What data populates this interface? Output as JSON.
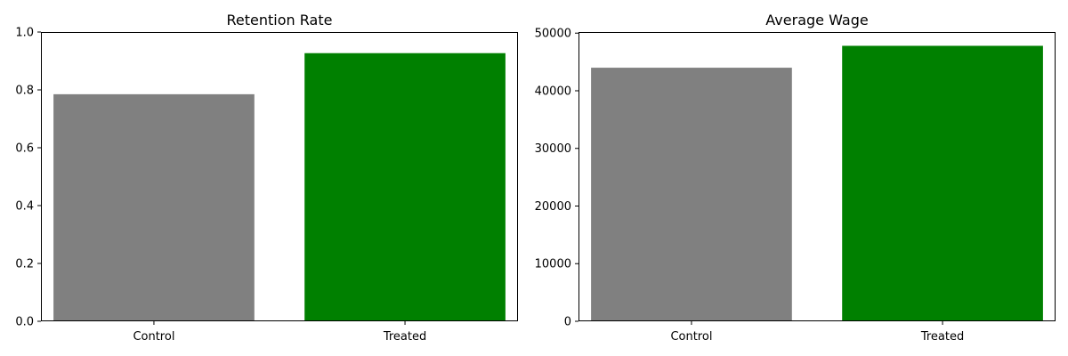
{
  "chart_data": [
    {
      "type": "bar",
      "title": "Retention Rate",
      "categories": [
        "Control",
        "Treated"
      ],
      "values": [
        0.785,
        0.927
      ],
      "colors": [
        "#808080",
        "#008000"
      ],
      "xlabel": "",
      "ylabel": "",
      "ylim": [
        0,
        1.0
      ],
      "yticks": [
        0.0,
        0.2,
        0.4,
        0.6,
        0.8,
        1.0
      ],
      "ytick_labels": [
        "0.0",
        "0.2",
        "0.4",
        "0.6",
        "0.8",
        "1.0"
      ],
      "grid": false,
      "legend": "none"
    },
    {
      "type": "bar",
      "title": "Average Wage",
      "categories": [
        "Control",
        "Treated"
      ],
      "values": [
        44000,
        47800
      ],
      "colors": [
        "#808080",
        "#008000"
      ],
      "xlabel": "",
      "ylabel": "",
      "ylim": [
        0,
        50190
      ],
      "yticks": [
        0,
        10000,
        20000,
        30000,
        40000,
        50000
      ],
      "ytick_labels": [
        "0",
        "10000",
        "20000",
        "30000",
        "40000",
        "50000"
      ],
      "grid": false,
      "legend": "none"
    }
  ]
}
